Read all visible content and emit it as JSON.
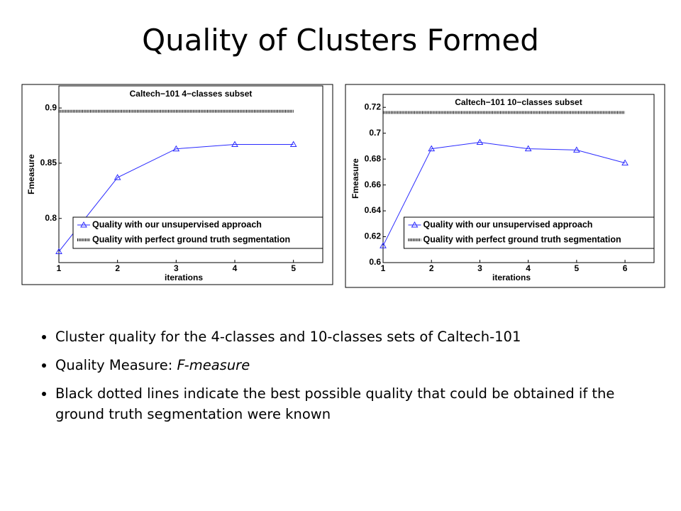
{
  "title": "Quality of Clusters Formed",
  "bullets": [
    "Cluster quality for the 4-classes and 10-classes sets of Caltech-101",
    {
      "text": "Quality Measure: ",
      "emphasis": "F-measure"
    },
    "Black dotted lines indicate the best possible quality that could be obtained if the ground truth segmentation were known"
  ],
  "chart_data": [
    {
      "type": "line",
      "title": "Caltech−101 4−classes subset",
      "xlabel": "iterations",
      "ylabel": "Fmeasure",
      "x": [
        1,
        2,
        3,
        4,
        5
      ],
      "xlim": [
        1,
        5.5
      ],
      "xticks": [
        1,
        2,
        3,
        4,
        5
      ],
      "ylim": [
        0.76,
        0.92
      ],
      "yticks": [
        0.8,
        0.85,
        0.9
      ],
      "legend": "lower right",
      "series": [
        {
          "name": "Quality with our unsupervised approach",
          "color": "#2a2aff",
          "marker": "triangle",
          "values": [
            0.77,
            0.837,
            0.863,
            0.867,
            0.867
          ]
        },
        {
          "name": "Quality with perfect ground truth segmentation",
          "color": "#000000",
          "style": "dotted",
          "values": [
            0.897,
            0.897,
            0.897,
            0.897,
            0.897
          ]
        }
      ]
    },
    {
      "type": "line",
      "title": "Caltech−101 10−classes subset",
      "xlabel": "iterations",
      "ylabel": "Fmeasure",
      "x": [
        1,
        2,
        3,
        4,
        5,
        6
      ],
      "xlim": [
        1,
        6.6
      ],
      "xticks": [
        1,
        2,
        3,
        4,
        5,
        6
      ],
      "ylim": [
        0.6,
        0.73
      ],
      "yticks": [
        0.6,
        0.62,
        0.64,
        0.66,
        0.68,
        0.7,
        0.72
      ],
      "legend": "lower right",
      "series": [
        {
          "name": "Quality with our unsupervised approach",
          "color": "#2a2aff",
          "marker": "triangle",
          "values": [
            0.613,
            0.688,
            0.693,
            0.688,
            0.687,
            0.677
          ]
        },
        {
          "name": "Quality with perfect ground truth segmentation",
          "color": "#000000",
          "style": "dotted",
          "values": [
            0.716,
            0.716,
            0.716,
            0.716,
            0.716,
            0.716
          ]
        }
      ]
    }
  ]
}
